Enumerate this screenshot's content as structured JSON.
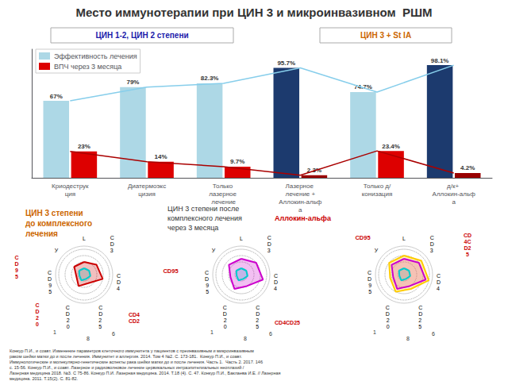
{
  "chart_data": [
    {
      "type": "bar",
      "title": "Место иммунотерапии при ЦИН 3 и микроинвазивном  РШМ",
      "subtitle": [
        {
          "text": "ЦИН 1-2, ЦИН 2 степени",
          "color": "#1a1aaa"
        },
        {
          "text": "ЦИН 3 + St IA",
          "color": "#cc6600"
        }
      ],
      "categories": [
        "Криодеструкция",
        "Диатермоэксцизия",
        "Только лазерное лечение",
        "Лазерное лечение +\nАллокин-альфа",
        "Только д/конизация",
        "д/к+ Аллокин-альфа"
      ],
      "series": [
        {
          "name": "Эффективность лечения",
          "type": "bar",
          "color": "#add8e6",
          "colors": [
            "#add8e6",
            "#add8e6",
            "#add8e6",
            "#1c3a6e",
            "#add8e6",
            "#1c3a6e"
          ],
          "values": [
            67,
            79,
            82.3,
            95.7,
            74.7,
            98.1
          ],
          "value_labels": [
            "67%",
            "79%",
            "82.3%",
            "95.7%",
            "74.7%",
            "98.1%"
          ]
        },
        {
          "name": "ВПЧ через 3 месяца",
          "type": "bar",
          "color": "#dd0000",
          "colors": [
            "#dd0000",
            "#dd0000",
            "#dd0000",
            "#990000",
            "#dd0000",
            "#990000"
          ],
          "values": [
            23,
            14,
            9.7,
            2.3,
            23.4,
            4.2
          ],
          "value_labels": [
            "23%",
            "14%",
            "9.7%",
            "2.3%",
            "23.4%",
            "4.2%"
          ]
        },
        {
          "type": "line",
          "color": "#87ceeb",
          "values": [
            67,
            79,
            82.3,
            95.7,
            74.7,
            98.1
          ]
        },
        {
          "type": "line",
          "color": "#aa0000",
          "values": [
            23,
            14,
            9.7,
            2.3,
            23.4,
            4.2
          ]
        }
      ],
      "ylim": [
        0,
        112
      ],
      "tick_labels": "x",
      "grid": false,
      "legend": "upper left",
      "data_labels": true,
      "annotations": [
        {
          "text": "Конкур П.И., и соавт. Изменение параметров клеточного иммунитета у пациентов с преинвазивным и микроинвазивным раком шейки матки до и после лечения. Иммунитет и аллергия. 2014. Том 4 №2. С. 173-181.  Конкур П.И., и соавт. Иммунологические и молекулярно-генетические аспекты рака шейки матки до и после лечения. Часть 1.  Часть 2. 2017. 146 с. 15-56. Конкур П.И., и соавт. Лазерное и радиоволновое лечение цервикальных интраэпителиальных неоплазий / Лазерная медицина 2018. №3. С 75-86. Конкур П.И. Лазерная медицина. 2014. Т.18 (4). С. 47. Конкур П.И., Баклаева И.Е. // Лазерная медицина. 2011. Т.15(2). С. 81-82."
        }
      ]
    },
    {
      "type": "radar",
      "categories": [
        "L",
        "C\nD\n3",
        "C\nD\n4",
        "C\nD\n2\n5",
        "C\nD\n2\n0",
        "C\nD\n9\n5",
        "У"
      ],
      "series": [
        {
          "color": "#00cccc",
          "values": [
            2,
            2,
            2,
            1.5,
            2,
            1.5,
            2
          ]
        },
        {
          "color": "#cc0000",
          "values": [
            4,
            5,
            6,
            3,
            4,
            2.5,
            4
          ]
        }
      ],
      "ylim": [
        0,
        9
      ],
      "yticks": [
        2,
        4,
        6,
        8
      ],
      "tick_labels": "x",
      "grid": true,
      "annotations": [
        {
          "text": "ЦИН 3 степени\nдо комплексного\nлечения",
          "color": "#cc6600"
        },
        {
          "text": "C\nD\n9\n5",
          "color": "#cc0000"
        },
        {
          "text": "C\nD\n2\n0",
          "color": "#cc0000"
        },
        {
          "text": "CD4\nCD2",
          "color": "#cc0000"
        },
        {
          "text": "1"
        },
        {
          "text": "8"
        },
        {
          "text": "6"
        }
      ]
    },
    {
      "type": "radar",
      "categories": [
        "L",
        "C\nD\n3",
        "C\nD\n4",
        "C\nD\n2\n5",
        "C\nD\n2\n0",
        "C\nD\n9\n5",
        "У"
      ],
      "series": [
        {
          "color": "#00cccc",
          "values": [
            2,
            2,
            2,
            1.5,
            2,
            1.5,
            2
          ]
        },
        {
          "color": "#cc00cc",
          "values": [
            5,
            6,
            7,
            4,
            5,
            3.5,
            5
          ]
        }
      ],
      "ylim": [
        0,
        9
      ],
      "yticks": [
        2,
        4,
        6,
        8
      ],
      "tick_labels": "x",
      "grid": true,
      "annotations": [
        {
          "text": "ЦИН 3 степени после"
        },
        {
          "text": "комплексного лечения "
        },
        {
          "text": "Аллокин-альфа",
          "color": "#cc0000"
        },
        {
          "text": "через 3 месяца"
        },
        {
          "text": "CD95",
          "color": "#cc0000"
        },
        {
          "text": "CD4CD25",
          "color": "#cc0000"
        },
        {
          "text": "1"
        },
        {
          "text": "8"
        },
        {
          "text": "6"
        }
      ]
    },
    {
      "type": "radar",
      "categories": [
        "L",
        "C\nD\n3",
        "C\nD\n4",
        "C\nD\n2\n5",
        "C\nD\n2\n0",
        "C\nD\n9\n5",
        "У"
      ],
      "series": [
        {
          "color": "#00cccc",
          "values": [
            2,
            2,
            2,
            1.5,
            2,
            1.5,
            2
          ]
        },
        {
          "color": "#cc00cc",
          "values": [
            5,
            6,
            7,
            4,
            5,
            3.5,
            5
          ]
        },
        {
          "color": "#ffcc00",
          "values": [
            6,
            7,
            8,
            5,
            6,
            4.5,
            6
          ]
        }
      ],
      "ylim": [
        0,
        9
      ],
      "yticks": [
        2,
        4,
        6,
        8
      ],
      "tick_labels": "x",
      "grid": true,
      "annotations": [
        {
          "text": "CD95",
          "color": "#cc0000"
        },
        {
          "text": "CD\n4C\nD2\n5",
          "color": "#cc0000"
        },
        {
          "text": "1"
        },
        {
          "text": "8"
        },
        {
          "text": "6"
        }
      ]
    }
  ]
}
